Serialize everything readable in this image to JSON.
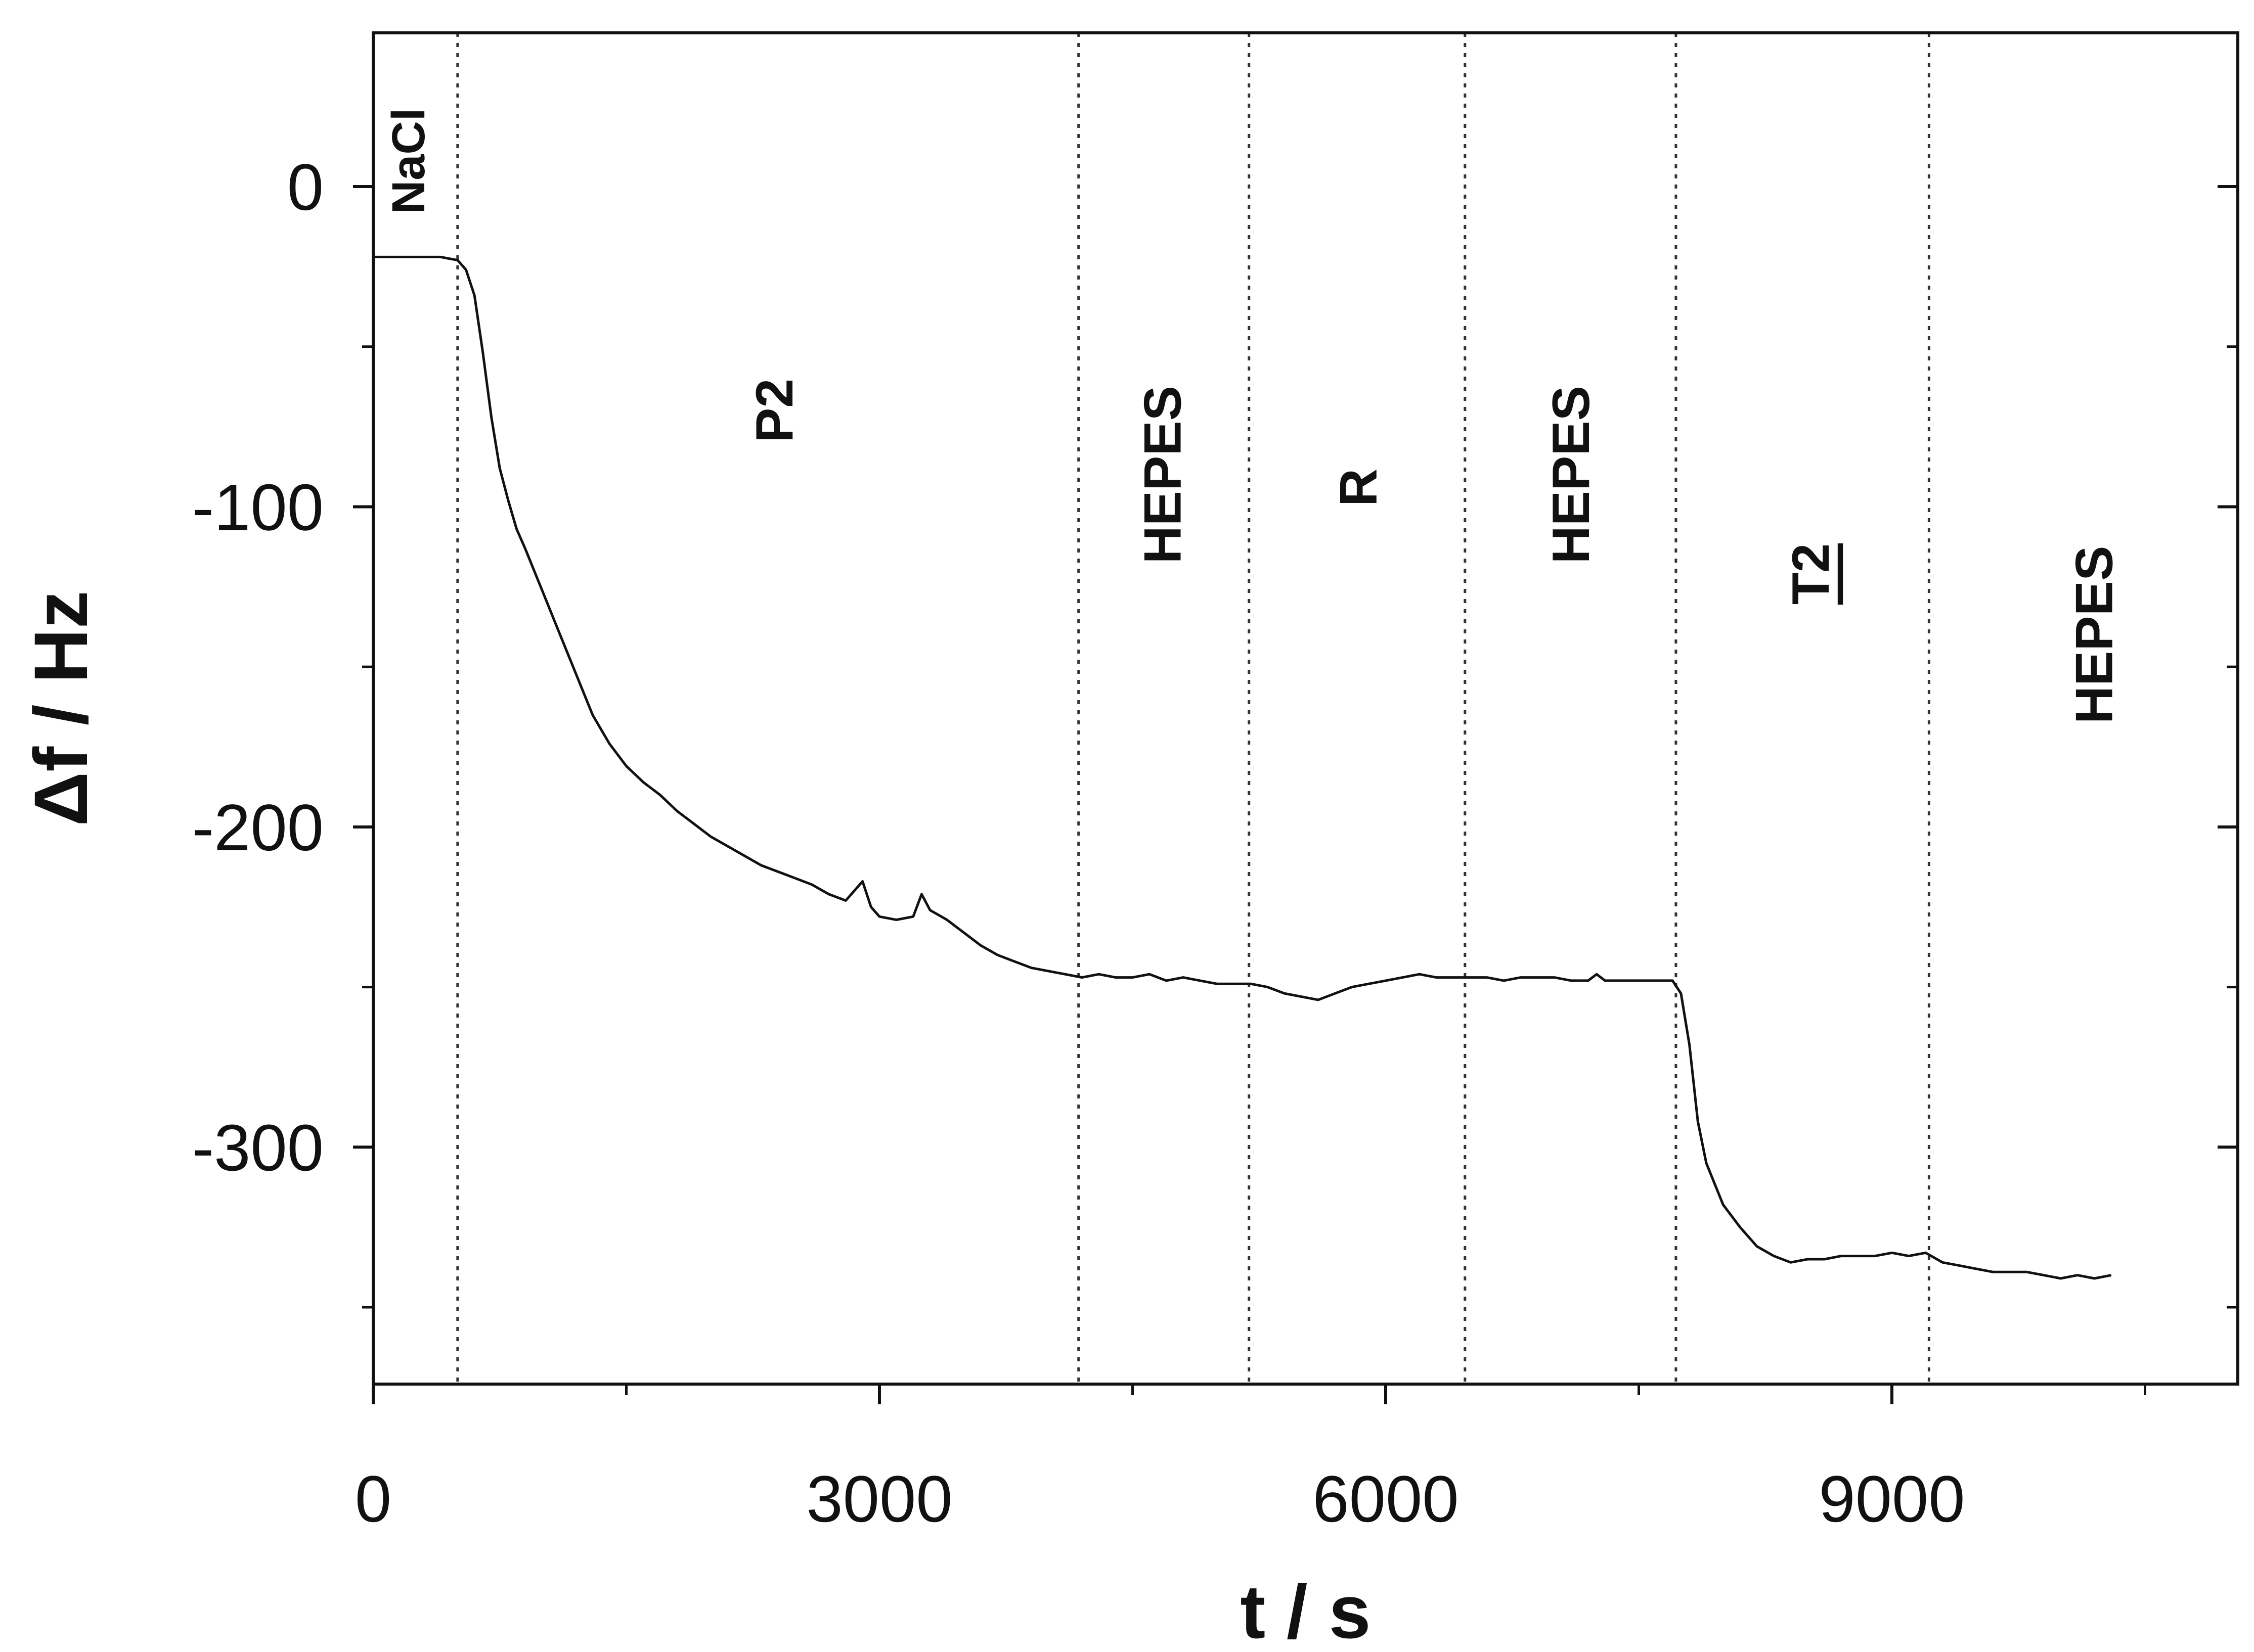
{
  "chart_data": {
    "type": "line",
    "title": "",
    "xlabel": "t / s",
    "ylabel": "Δf / Hz",
    "xlim": [
      0,
      11050
    ],
    "ylim": [
      -374,
      48
    ],
    "x_ticks": [
      0,
      3000,
      6000,
      9000
    ],
    "x_tick_labels": [
      "0",
      "3000",
      "6000",
      "9000"
    ],
    "x_minor_ticks": [
      1500,
      4500,
      7500,
      10500
    ],
    "y_ticks": [
      0,
      -100,
      -200,
      -300
    ],
    "y_tick_labels": [
      "0",
      "-100",
      "-200",
      "-300"
    ],
    "y_minor_ticks": [
      -50,
      -150,
      -250,
      -350
    ],
    "grid": false,
    "legend": "none",
    "line_color": "#111111",
    "event_lines": [
      500,
      4180,
      5190,
      6470,
      7720,
      9220
    ],
    "regions": [
      {
        "label": "NaCl",
        "x": 210,
        "y": 8
      },
      {
        "label": "P2",
        "x": 2380,
        "y": -70
      },
      {
        "label": "HEPES",
        "x": 4680,
        "y": -90
      },
      {
        "label": "R",
        "x": 5840,
        "y": -94
      },
      {
        "label": "HEPES",
        "x": 7100,
        "y": -90
      },
      {
        "label": "T2",
        "x": 8520,
        "y": -121
      },
      {
        "label": "HEPES",
        "x": 10200,
        "y": -140
      }
    ],
    "series": [
      {
        "x": [
          0,
          200,
          400,
          500,
          550,
          600,
          650,
          700,
          750,
          800,
          850,
          900,
          1000,
          1100,
          1200,
          1300,
          1400,
          1500,
          1600,
          1700,
          1800,
          1900,
          2000,
          2100,
          2200,
          2300,
          2400,
          2500,
          2600,
          2700,
          2800,
          2900,
          2950,
          3000,
          3100,
          3200,
          3250,
          3300,
          3400,
          3500,
          3600,
          3700,
          3800,
          3900,
          4000,
          4100,
          4200,
          4300,
          4400,
          4500,
          4600,
          4700,
          4800,
          4900,
          5000,
          5100,
          5200,
          5300,
          5400,
          5500,
          5600,
          5700,
          5800,
          5900,
          6000,
          6100,
          6200,
          6300,
          6400,
          6500,
          6600,
          6700,
          6800,
          6900,
          7000,
          7100,
          7200,
          7250,
          7300,
          7400,
          7500,
          7600,
          7700,
          7750,
          7800,
          7850,
          7900,
          8000,
          8100,
          8200,
          8300,
          8400,
          8500,
          8600,
          8700,
          8800,
          8900,
          9000,
          9100,
          9200,
          9300,
          9400,
          9500,
          9600,
          9700,
          9800,
          9900,
          10000,
          10100,
          10200,
          10300
        ],
        "y": [
          -22,
          -22,
          -22,
          -23,
          -26,
          -34,
          -52,
          -72,
          -88,
          -98,
          -107,
          -113,
          -126,
          -139,
          -152,
          -165,
          -174,
          -181,
          -186,
          -190,
          -195,
          -199,
          -203,
          -206,
          -209,
          -212,
          -214,
          -216,
          -218,
          -221,
          -223,
          -217,
          -225,
          -228,
          -229,
          -228,
          -221,
          -226,
          -229,
          -233,
          -237,
          -240,
          -242,
          -244,
          -245,
          -246,
          -247,
          -246,
          -247,
          -247,
          -246,
          -248,
          -247,
          -248,
          -249,
          -249,
          -249,
          -250,
          -252,
          -253,
          -254,
          -252,
          -250,
          -249,
          -248,
          -247,
          -246,
          -247,
          -247,
          -247,
          -247,
          -248,
          -247,
          -247,
          -247,
          -248,
          -248,
          -246,
          -248,
          -248,
          -248,
          -248,
          -248,
          -252,
          -268,
          -292,
          -305,
          -318,
          -325,
          -331,
          -334,
          -336,
          -335,
          -335,
          -334,
          -334,
          -334,
          -333,
          -334,
          -333,
          -336,
          -337,
          -338,
          -339,
          -339,
          -339,
          -340,
          -341,
          -340,
          -341,
          -340
        ]
      }
    ]
  }
}
